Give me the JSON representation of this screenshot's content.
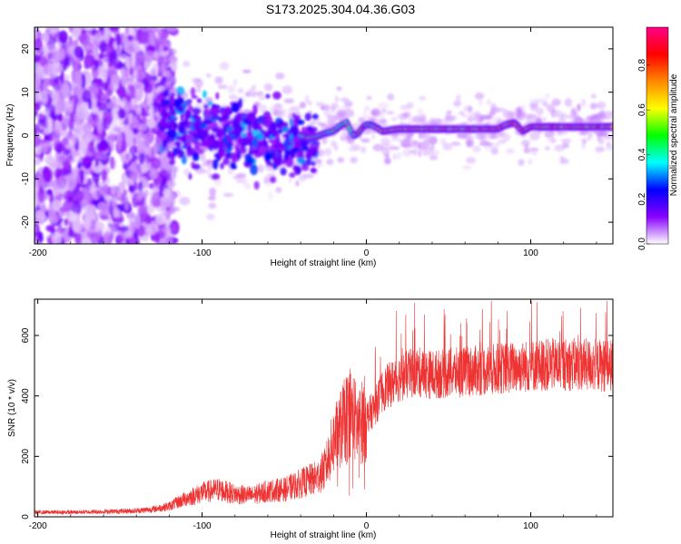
{
  "title": "S173.2025.304.04.36.G03",
  "chart_data": [
    {
      "type": "heatmap",
      "name": "spectrogram",
      "xlabel": "Height of straight line (km)",
      "ylabel": "Frequency (Hz)",
      "xlim": [
        -202,
        150
      ],
      "ylim": [
        -25,
        25
      ],
      "xticks": [
        -200,
        -100,
        0,
        100
      ],
      "yticks": [
        -20,
        -10,
        0,
        10,
        20
      ],
      "colorbar": {
        "label": "Normalized spectral amplitude",
        "range": [
          0,
          0.97
        ],
        "ticks": [
          0.0,
          0.2,
          0.4,
          0.6,
          0.8
        ],
        "colors": [
          "#ffffff",
          "#8800ff",
          "#0000ff",
          "#00ffff",
          "#00ff00",
          "#ffff00",
          "#ff8800",
          "#ff0000",
          "#ff0088"
        ]
      },
      "ridge": {
        "x": [
          -40,
          -35,
          -30,
          -25,
          -20,
          -15,
          -12,
          -10,
          -8,
          -5,
          -2,
          0,
          3,
          10,
          20,
          40,
          60,
          80,
          85,
          90,
          95,
          100,
          120,
          150
        ],
        "y": [
          0.0,
          -0.5,
          -0.2,
          0.5,
          1.0,
          2.5,
          3.0,
          1.5,
          0.0,
          0.5,
          2.0,
          2.5,
          2.5,
          1.0,
          1.5,
          1.5,
          1.5,
          1.5,
          2.5,
          3.0,
          1.0,
          2.0,
          2.0,
          2.0
        ]
      }
    },
    {
      "type": "line",
      "name": "snr",
      "xlabel": "Height of straight line (km)",
      "ylabel": "SNR (10 * v/v)",
      "xlim": [
        -202,
        150
      ],
      "ylim": [
        0,
        720
      ],
      "xticks": [
        -200,
        -100,
        0,
        100
      ],
      "yticks": [
        0,
        200,
        400,
        600
      ],
      "color": "#ee3333",
      "x": [
        -202,
        -180,
        -160,
        -140,
        -130,
        -120,
        -110,
        -100,
        -90,
        -80,
        -70,
        -60,
        -50,
        -40,
        -30,
        -25,
        -20,
        -15,
        -10,
        -5,
        0,
        5,
        10,
        20,
        30,
        40,
        60,
        80,
        100,
        120,
        150
      ],
      "y": [
        15,
        15,
        17,
        20,
        25,
        35,
        60,
        80,
        90,
        75,
        70,
        85,
        90,
        110,
        130,
        160,
        250,
        300,
        350,
        300,
        330,
        360,
        420,
        460,
        480,
        470,
        480,
        490,
        500,
        505,
        500
      ]
    }
  ]
}
